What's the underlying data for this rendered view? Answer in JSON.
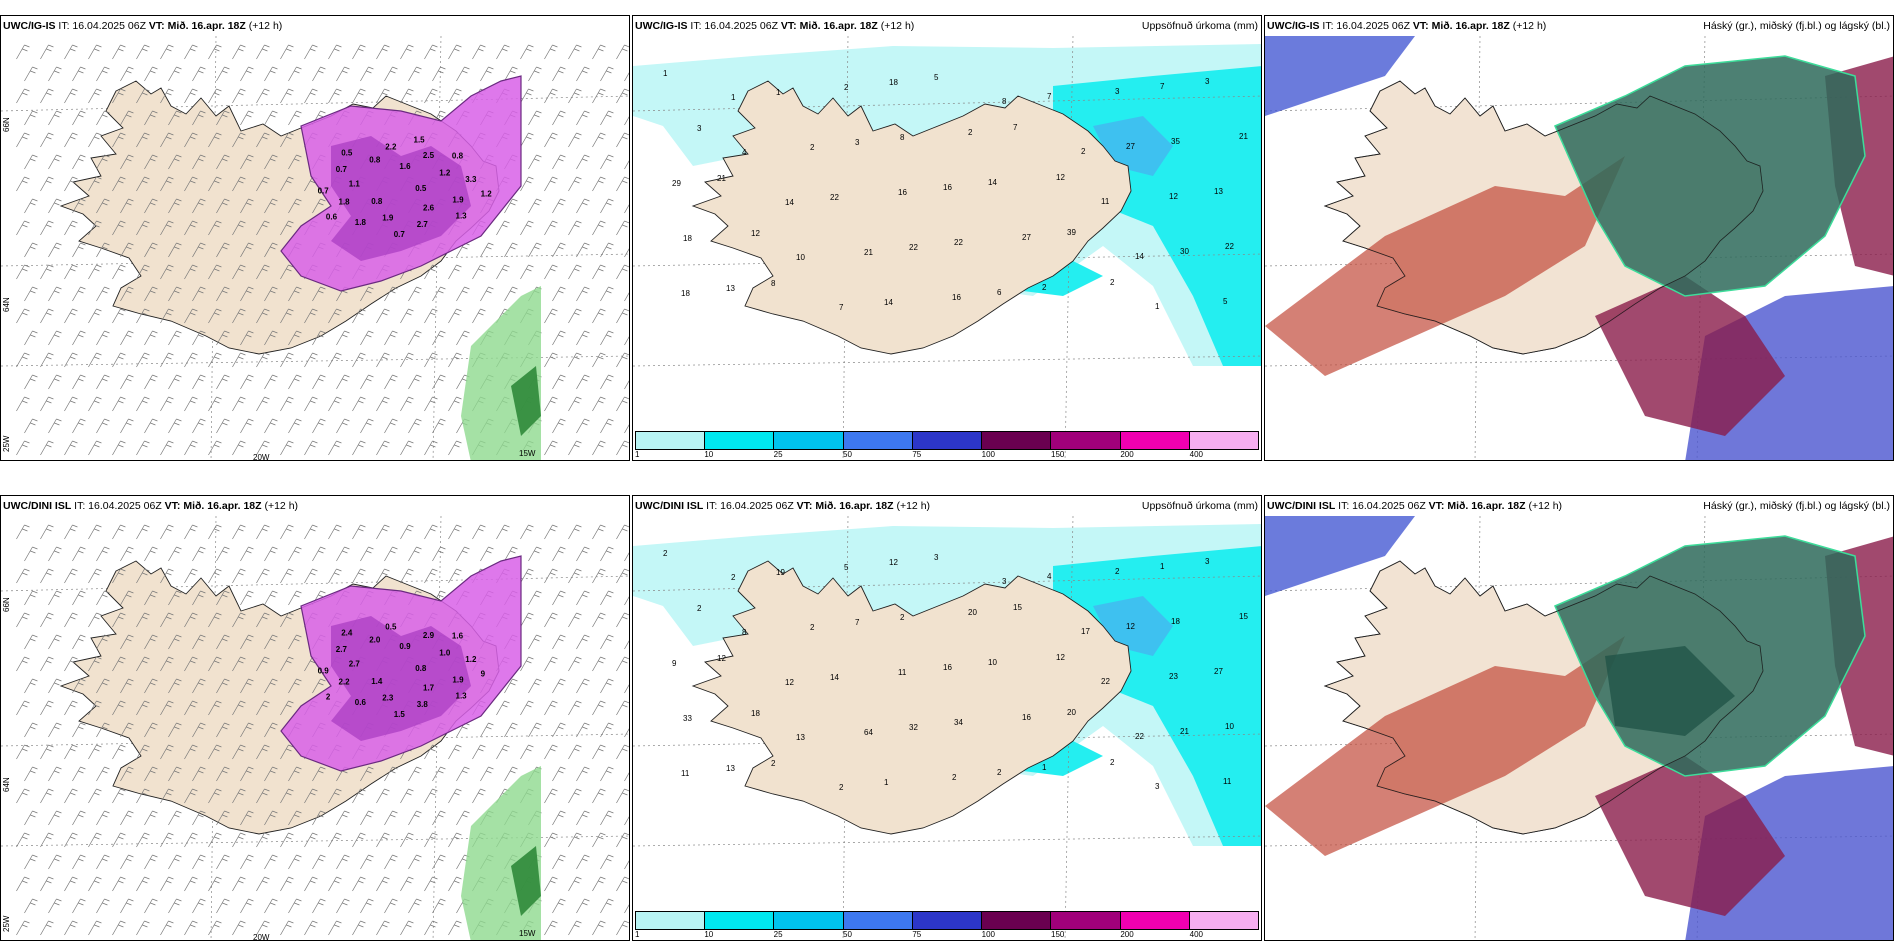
{
  "rows": [
    {
      "model": "UWC/IG-IS",
      "it": "IT: 16.04.2025 06Z",
      "vt_label": "VT:",
      "vt": "Mið. 16.apr. 18Z",
      "lead": "(+12 h)"
    },
    {
      "model": "UWC/DINI ISL",
      "it": "IT: 16.04.2025 06Z",
      "vt_label": "VT:",
      "vt": "Mið. 16.apr. 18Z",
      "lead": "(+12 h)"
    }
  ],
  "precip_title": "Uppsöfnuð úrkoma (mm)",
  "cloud_title": "Háský (gr.), miðský (fj.bl.) og lágský (bl.)",
  "axes": {
    "lat_66": "66N",
    "lat_64": "64N",
    "lon_25": "25W",
    "lon_20": "20W",
    "lon_15": "15W"
  },
  "colorbar": {
    "ticks": [
      "1",
      "10",
      "25",
      "50",
      "75",
      "100",
      "150",
      "200",
      "400"
    ],
    "colors": [
      "#b8f4f4",
      "#00e8f0",
      "#00c4ee",
      "#3d78f0",
      "#2c36c8",
      "#6a0050",
      "#a0007a",
      "#f000b0",
      "#f6aef0"
    ]
  },
  "precip_values_top": [
    "1",
    "1",
    "1",
    "2",
    "18",
    "5",
    "8",
    "7",
    "3",
    "7",
    "3",
    "3",
    "4",
    "2",
    "3",
    "8",
    "2",
    "7",
    "2",
    "27",
    "35",
    "21",
    "29",
    "21",
    "14",
    "22",
    "16",
    "16",
    "14",
    "12",
    "11",
    "12",
    "13",
    "18",
    "12",
    "10",
    "21",
    "22",
    "22",
    "27",
    "39",
    "14",
    "30",
    "22",
    "18",
    "13",
    "8",
    "7",
    "14",
    "16",
    "6",
    "2",
    "2",
    "1",
    "5"
  ],
  "precip_values_bottom": [
    "2",
    "2",
    "19",
    "5",
    "12",
    "3",
    "3",
    "4",
    "2",
    "1",
    "3",
    "2",
    "8",
    "2",
    "7",
    "2",
    "20",
    "15",
    "17",
    "12",
    "18",
    "15",
    "9",
    "12",
    "12",
    "14",
    "11",
    "16",
    "10",
    "12",
    "22",
    "23",
    "27",
    "33",
    "18",
    "13",
    "64",
    "32",
    "34",
    "16",
    "20",
    "22",
    "21",
    "10",
    "11",
    "13",
    "2",
    "2",
    "1",
    "2",
    "2",
    "1",
    "2",
    "3",
    "11"
  ],
  "precip2_values_top": [
    "0.5",
    "0.8",
    "1.6",
    "2.6",
    "1.1",
    "1.2",
    "1.9",
    "0.8",
    "1.9",
    "1.8",
    "2.5",
    "2.7",
    "0.7",
    "3.3",
    "1.8",
    "2.2",
    "1.3",
    "0.7",
    "0.8",
    "0.7",
    "0.5",
    "1.2",
    "0.6",
    "1.5"
  ],
  "precip2_values_bottom": [
    "0.8",
    "1.4",
    "0.9",
    "1.7",
    "2.7",
    "1.0",
    "2.3",
    "2.0",
    "1.9",
    "2.2",
    "2.9",
    "3.8",
    "2.7",
    "1.2",
    "0.6",
    "0.5",
    "1.3",
    "0.9",
    "1.6",
    "1.5",
    "2.4",
    "9",
    "2"
  ]
}
